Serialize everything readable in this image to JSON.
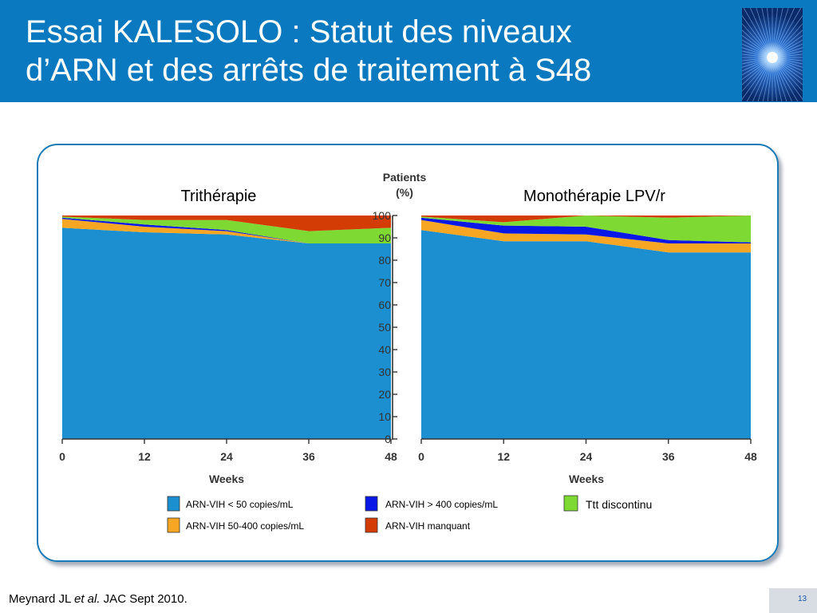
{
  "slide": {
    "title_line1": "Essai KALESOLO : Statut des niveaux",
    "title_line2": "d’ARN et des arrêts de traitement à S48",
    "citation_author": "Meynard JL ",
    "citation_etal": "et al.",
    "citation_rest": " JAC Sept 2010.",
    "page_number": "13"
  },
  "colors": {
    "header": "#0a79bf",
    "panel_border": "#1a7ab8",
    "arn_lt50": "#1b8fd0",
    "arn_50_400": "#f6a623",
    "arn_gt400": "#0a18e6",
    "ttt_discontinu": "#7fd933",
    "arn_manquant": "#d43c05"
  },
  "chart_data": [
    {
      "type": "area",
      "title": "Trithérapie",
      "xlabel": "Weeks",
      "ylabel": "Patients (%)",
      "x": [
        0,
        12,
        24,
        36,
        48
      ],
      "ylim": [
        0,
        100
      ],
      "stacking": "stacked",
      "series": [
        {
          "name": "ARN-VIH < 50 copies/mL",
          "color_key": "arn_lt50",
          "values": [
            94.5,
            92.5,
            91.5,
            87.5,
            87.5
          ]
        },
        {
          "name": "ARN-VIH 50-400 copies/mL",
          "color_key": "arn_50_400",
          "values": [
            4,
            2.5,
            1.5,
            0,
            0
          ]
        },
        {
          "name": "ARN-VIH > 400 copies/mL",
          "color_key": "arn_gt400",
          "values": [
            0.5,
            1,
            0.5,
            0,
            0
          ]
        },
        {
          "name": "Ttt discontinu",
          "color_key": "ttt_discontinu",
          "values": [
            0.5,
            2,
            4.5,
            5.5,
            7
          ]
        },
        {
          "name": "ARN-VIH manquant",
          "color_key": "arn_manquant",
          "values": [
            0.5,
            2,
            2,
            7,
            5.5
          ]
        }
      ]
    },
    {
      "type": "area",
      "title": "Monothérapie LPV/r",
      "xlabel": "Weeks",
      "ylabel": "Patients (%)",
      "x": [
        0,
        12,
        24,
        36,
        48
      ],
      "ylim": [
        0,
        100
      ],
      "stacking": "stacked",
      "series": [
        {
          "name": "ARN-VIH < 50 copies/mL",
          "color_key": "arn_lt50",
          "values": [
            93.5,
            88.5,
            88.5,
            83.5,
            83.5
          ]
        },
        {
          "name": "ARN-VIH 50-400 copies/mL",
          "color_key": "arn_50_400",
          "values": [
            4.5,
            3.5,
            3,
            4,
            4
          ]
        },
        {
          "name": "ARN-VIH > 400 copies/mL",
          "color_key": "arn_gt400",
          "values": [
            1,
            3.5,
            3.5,
            1.5,
            0.5
          ]
        },
        {
          "name": "Ttt discontinu",
          "color_key": "ttt_discontinu",
          "values": [
            0.5,
            1.5,
            5,
            10,
            12
          ]
        },
        {
          "name": "ARN-VIH manquant",
          "color_key": "arn_manquant",
          "values": [
            0.5,
            3,
            0,
            1,
            0
          ]
        }
      ]
    }
  ],
  "axis": {
    "y_title_line1": "Patients",
    "y_title_line2": "(%)",
    "y_ticks": [
      "0",
      "10",
      "20",
      "30",
      "40",
      "50",
      "60",
      "70",
      "80",
      "90",
      "100"
    ],
    "x_ticks": [
      "0",
      "12",
      "24",
      "36",
      "48"
    ],
    "x_title": "Weeks"
  },
  "legend": [
    {
      "label": "ARN-VIH < 50 copies/mL",
      "color_key": "arn_lt50"
    },
    {
      "label": "ARN-VIH > 400 copies/mL",
      "color_key": "arn_gt400"
    },
    {
      "label": "Ttt discontinu",
      "color_key": "ttt_discontinu"
    },
    {
      "label": "ARN-VIH 50-400 copies/mL",
      "color_key": "arn_50_400"
    },
    {
      "label": "ARN-VIH manquant",
      "color_key": "arn_manquant"
    }
  ]
}
